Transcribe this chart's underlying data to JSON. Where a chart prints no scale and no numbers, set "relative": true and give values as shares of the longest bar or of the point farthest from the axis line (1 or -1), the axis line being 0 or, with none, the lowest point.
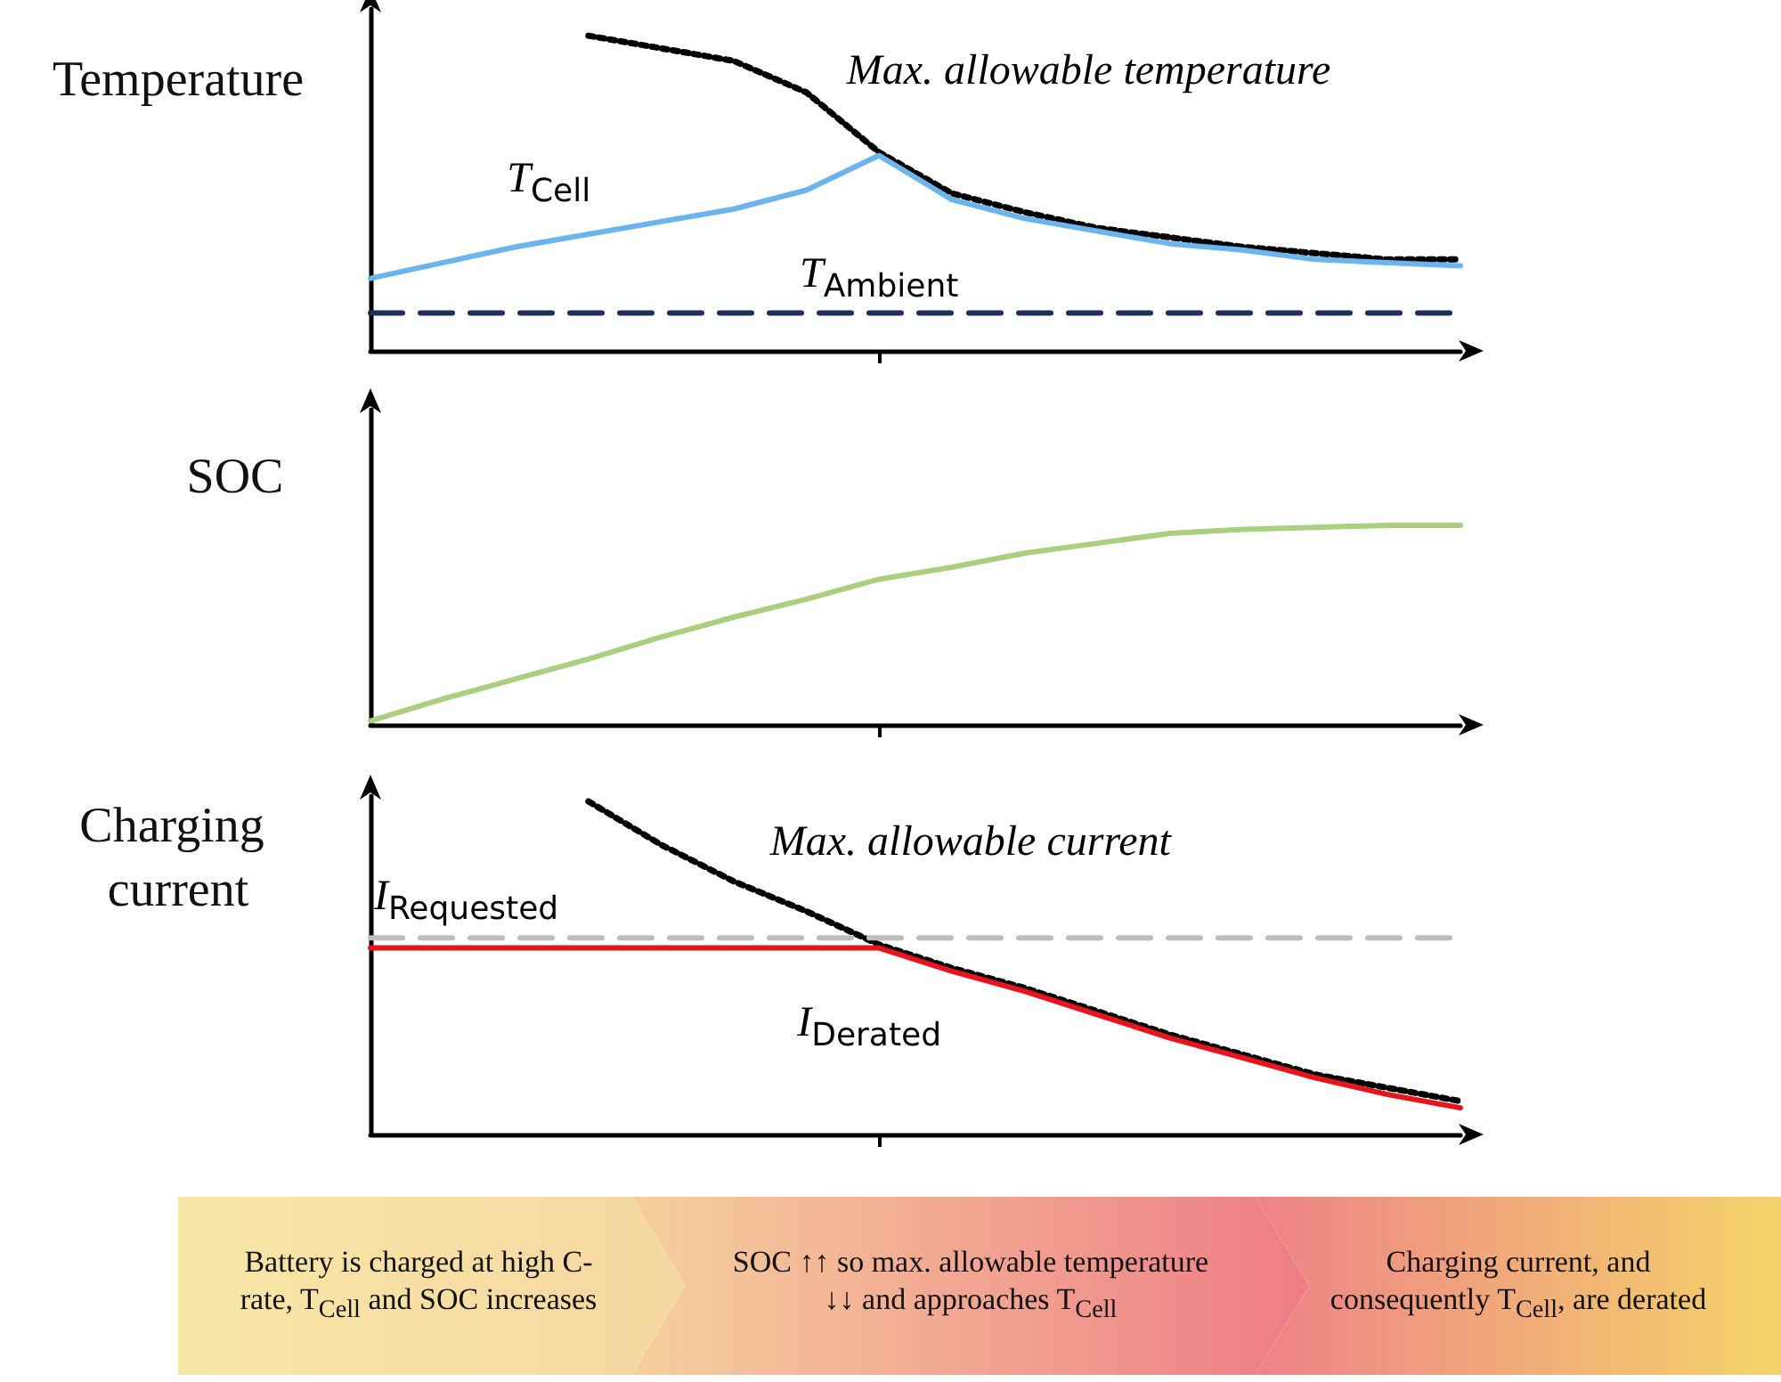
{
  "chart_data": [
    {
      "type": "line",
      "relative": true,
      "ylabel": "Temperature",
      "categories": [
        null,
        null,
        null,
        null,
        null,
        null,
        null,
        null,
        null,
        null,
        null,
        null,
        null,
        null,
        null,
        null
      ],
      "grid": false,
      "legend": false,
      "marker": "none",
      "series": [
        {
          "name": "Max. allowable temperature",
          "color": "#000000",
          "line_style": "dotted",
          "values": [
            null,
            null,
            null,
            1,
            0.96,
            0.92,
            0.82,
            0.63,
            0.5,
            0.44,
            0.39,
            0.36,
            0.33,
            0.31,
            0.29,
            0.29
          ]
        },
        {
          "name": "T$_{Cell}$",
          "color": "#6cb4ee",
          "line_style": "solid",
          "values": [
            0.23,
            0.28,
            0.33,
            0.37,
            0.41,
            0.45,
            0.51,
            0.62,
            0.48,
            0.42,
            0.38,
            0.34,
            0.32,
            0.29,
            0.28,
            0.27
          ]
        },
        {
          "name": "T$_{Ambient}$",
          "color": "#1f2d5c",
          "line_style": "dashed",
          "values": [
            0.12,
            0.12,
            0.12,
            0.12,
            0.12,
            0.12,
            0.12,
            0.12,
            0.12,
            0.12,
            0.12,
            0.12,
            0.12,
            0.12,
            0.12,
            0.12
          ]
        }
      ]
    },
    {
      "type": "line",
      "relative": true,
      "ylabel": "SOC",
      "categories": [
        null,
        null,
        null,
        null,
        null,
        null,
        null,
        null,
        null,
        null,
        null,
        null,
        null,
        null,
        null,
        null
      ],
      "grid": false,
      "legend": false,
      "marker": "none",
      "series": [
        {
          "color": "#a9cf7f",
          "line_style": "solid",
          "values": [
            0.02,
            0.13,
            0.23,
            0.33,
            0.44,
            0.54,
            0.63,
            0.73,
            0.79,
            0.86,
            0.91,
            0.96,
            0.98,
            0.99,
            1,
            1
          ]
        }
      ]
    },
    {
      "type": "line",
      "relative": true,
      "ylabel": "Charging current",
      "categories": [
        null,
        null,
        null,
        null,
        null,
        null,
        null,
        null,
        null,
        null,
        null,
        null,
        null,
        null,
        null,
        null
      ],
      "grid": false,
      "legend": false,
      "marker": "none",
      "series": [
        {
          "name": "Max. allowable current",
          "color": "#000000",
          "line_style": "dotted",
          "values": [
            null,
            null,
            null,
            1,
            0.87,
            0.76,
            0.67,
            0.57,
            0.5,
            0.44,
            0.37,
            0.3,
            0.24,
            0.18,
            0.14,
            0.1
          ]
        },
        {
          "name": "I$_{Requested}$",
          "color": "#bdbdbd",
          "line_style": "dashed",
          "values": [
            0.59,
            0.59,
            0.59,
            0.59,
            0.59,
            0.59,
            0.59,
            0.59,
            0.59,
            0.59,
            0.59,
            0.59,
            0.59,
            0.59,
            0.59,
            0.59
          ]
        },
        {
          "name": "I$_{Derated}$",
          "color": "#e8141c",
          "line_style": "solid",
          "values": [
            0.56,
            0.56,
            0.56,
            0.56,
            0.56,
            0.56,
            0.56,
            0.56,
            0.49,
            0.43,
            0.36,
            0.29,
            0.23,
            0.17,
            0.12,
            0.08
          ]
        }
      ]
    },
    {
      "type": "other",
      "annotations": [
        "Battery is charged at high C-rate, T$_{Cell}$ and SOC increases",
        "SOC ↑↑ so max. allowable temperature ↓↓ and approaches T$_{Cell}$",
        "Charging current, and consequently T$_{Cell}$, are derated"
      ]
    }
  ]
}
